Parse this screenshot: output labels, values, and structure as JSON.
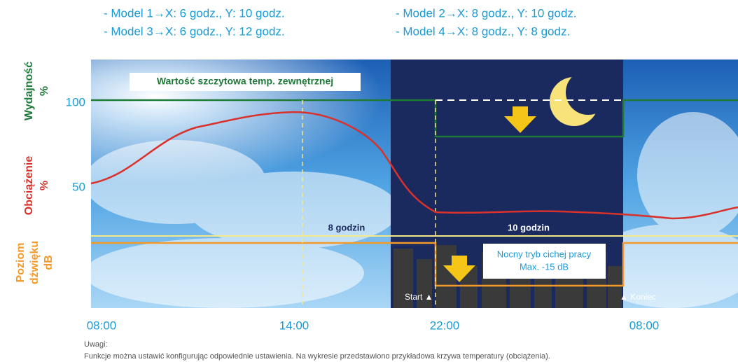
{
  "legend": {
    "items": [
      "- Model 1→X: 6 godz., Y: 10 godz.",
      "- Model 2→X: 8 godz., Y: 10 godz.",
      "- Model 3→X: 6 godz., Y: 12 godz.",
      "- Model 4→X: 8 godz., Y: 8 godz."
    ]
  },
  "axes": {
    "performance": [
      "Wydajność",
      "%"
    ],
    "load": [
      "Obciążenie",
      "%"
    ],
    "sound": [
      "Poziom",
      "dźwięku",
      "dB"
    ],
    "y_ticks": [
      "100",
      "50"
    ],
    "x_ticks": [
      "08:00",
      "14:00",
      "22:00",
      "08:00"
    ]
  },
  "annotations": {
    "peak": "Wartość szczytowa temp. zewnętrznej",
    "span_x": "8 godzin",
    "span_y": "10 godzin",
    "night_mode": [
      "Nocny tryb cichej pracy",
      "Max. -15 dB"
    ],
    "start": "Start ▲",
    "end": "▲ Koniec"
  },
  "notes": {
    "title": "Uwagi:",
    "text": "Funkcje można ustawić konfigurując odpowiednie ustawienia. Na wykresie przedstawiono przykładowa krzywa temperatury (obciążenia)."
  }
}
